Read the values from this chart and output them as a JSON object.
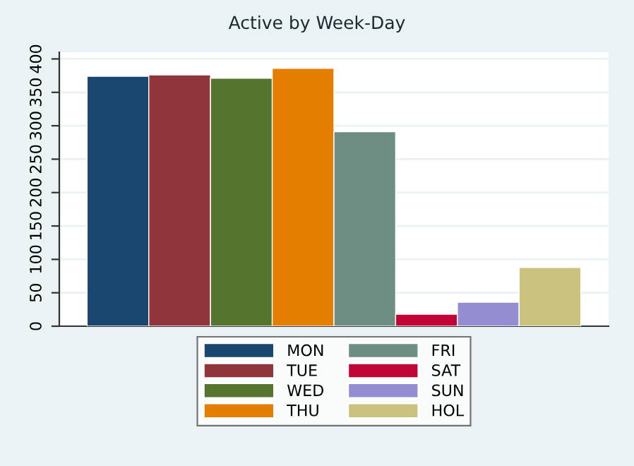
{
  "chart_data": {
    "type": "bar",
    "title": "Active by Week-Day",
    "categories": [
      null
    ],
    "series": [
      {
        "name": "MON",
        "color": "#1a476f",
        "values": [
          374
        ]
      },
      {
        "name": "TUE",
        "color": "#90353b",
        "values": [
          376
        ]
      },
      {
        "name": "WED",
        "color": "#55752f",
        "values": [
          371
        ]
      },
      {
        "name": "THU",
        "color": "#e37e00",
        "values": [
          386
        ]
      },
      {
        "name": "FRI",
        "color": "#6e8e84",
        "values": [
          291
        ]
      },
      {
        "name": "SAT",
        "color": "#c10534",
        "values": [
          18
        ]
      },
      {
        "name": "SUN",
        "color": "#938dd2",
        "values": [
          36
        ]
      },
      {
        "name": "HOL",
        "color": "#cac27e",
        "values": [
          88
        ]
      }
    ],
    "ylim": [
      0,
      410
    ],
    "yticks": [
      0,
      50,
      100,
      150,
      200,
      250,
      300,
      350,
      400
    ],
    "grid": "y",
    "legend": "bottom"
  }
}
